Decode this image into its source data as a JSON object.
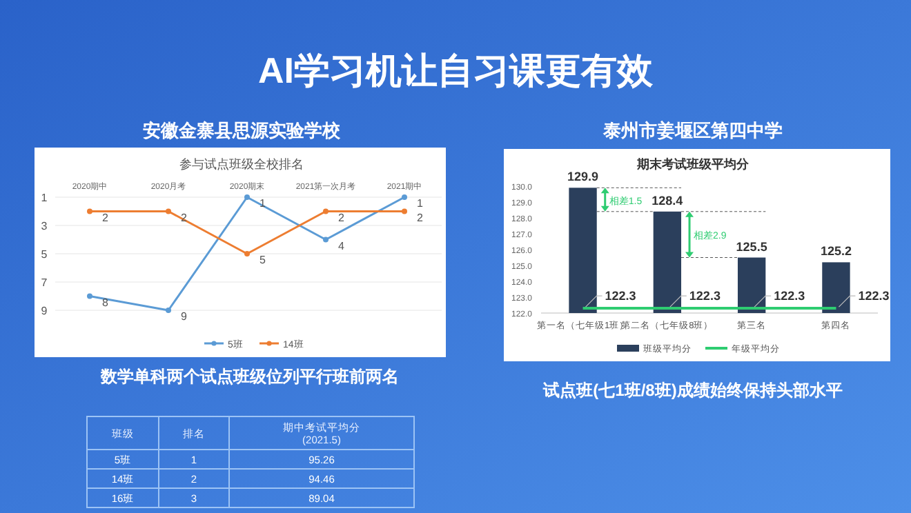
{
  "chart_data": [
    {
      "type": "line",
      "title": "参与试点班级全校排名",
      "subtitle": "安徽金寨县思源实验学校",
      "annotations": [
        "AI学习机让自习课更有效"
      ],
      "categories": [
        "2020期中",
        "2020月考",
        "2020期末",
        "2021第一次月考",
        "2021期中"
      ],
      "series": [
        {
          "name": "5班",
          "color": "#5b9bd5",
          "values": [
            8,
            9,
            1,
            4,
            1
          ]
        },
        {
          "name": "14班",
          "color": "#ed7d31",
          "values": [
            2,
            2,
            5,
            2,
            2
          ]
        }
      ],
      "ylim": [
        9,
        1
      ],
      "yticks": [
        1,
        3,
        5,
        7,
        9
      ],
      "grid": "y",
      "legend": "bottom",
      "marker": "circle",
      "data_labels": true
    },
    {
      "type": "bar",
      "title": "期末考试班级平均分",
      "subtitle": "泰州市姜堰区第四中学",
      "categories": [
        "第一名（七年级1班）",
        "第二名（七年级8班）",
        "第三名",
        "第四名"
      ],
      "series": [
        {
          "name": "班级平均分",
          "color": "#2b3f5c",
          "values": [
            129.9,
            128.4,
            125.5,
            125.2
          ]
        },
        {
          "name": "年级平均分",
          "type": "line",
          "color": "#2ecc71",
          "values": [
            122.3,
            122.3,
            122.3,
            122.3
          ]
        }
      ],
      "ylim": [
        122,
        130
      ],
      "yticks": [
        {
          "value": 122,
          "label": "122.0"
        },
        {
          "value": 123,
          "label": "123.0"
        },
        {
          "value": 124,
          "label": "124.0"
        },
        {
          "value": 125,
          "label": "125.0"
        },
        {
          "value": 126,
          "label": "126.0"
        },
        {
          "value": 127,
          "label": "127.0"
        },
        {
          "value": 128,
          "label": "128.0"
        },
        {
          "value": 129,
          "label": "129.0"
        },
        {
          "value": 130,
          "label": "130.0"
        }
      ],
      "legend": "bottom",
      "data_labels": true,
      "annotations": [
        "相差1.5",
        "相差2.9",
        "试点班(七1班/8班)成绩始终保持头部水平"
      ]
    },
    {
      "type": "other",
      "title": "数学单科两个试点班级位列平行班前两名",
      "xlabel": "班级",
      "categories": [
        "5班",
        "14班",
        "16班"
      ],
      "series": [
        {
          "name": "排名",
          "values": [
            1,
            2,
            3
          ]
        },
        {
          "name": "期中考试平均分\n(2021.5)",
          "values": [
            95.26,
            94.46,
            89.04
          ]
        }
      ],
      "data_labels": true
    }
  ]
}
